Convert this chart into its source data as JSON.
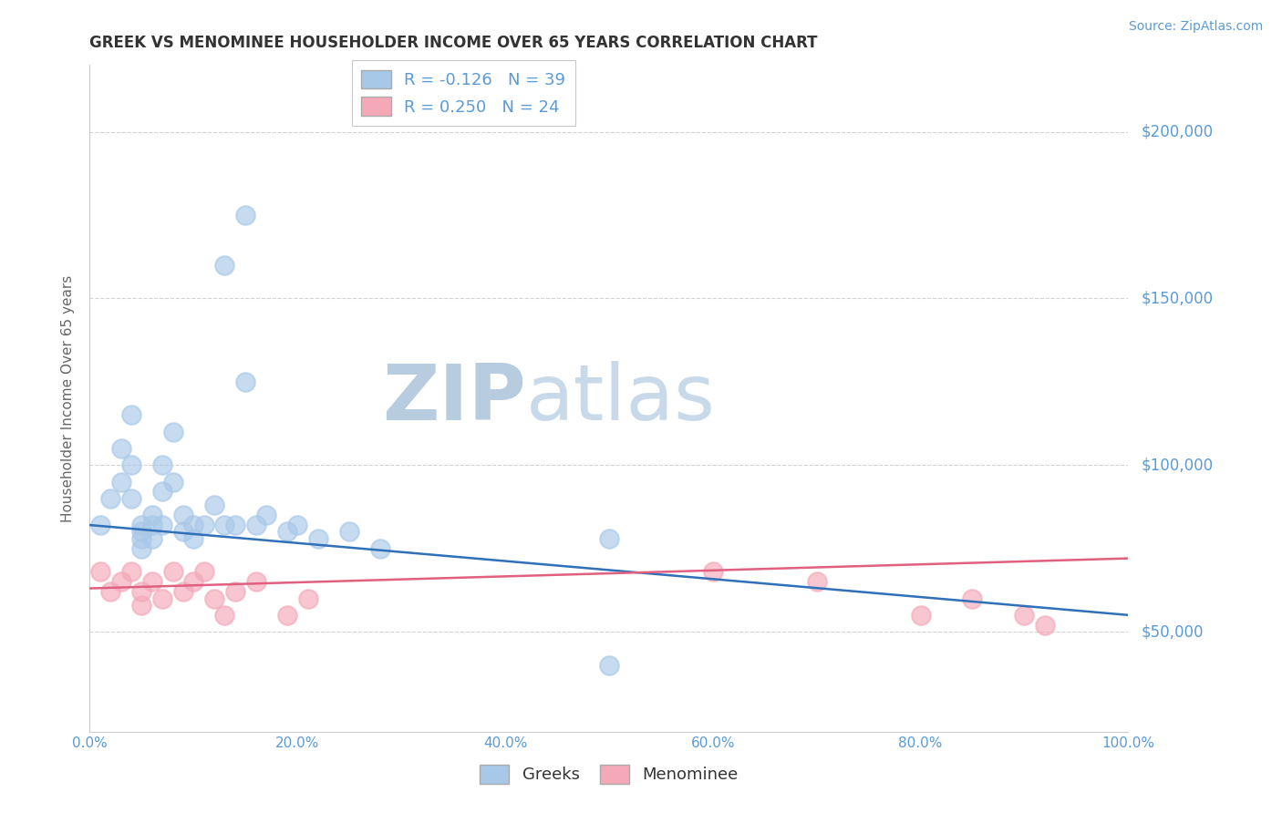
{
  "title": "GREEK VS MENOMINEE HOUSEHOLDER INCOME OVER 65 YEARS CORRELATION CHART",
  "source": "Source: ZipAtlas.com",
  "ylabel": "Householder Income Over 65 years",
  "xlim": [
    0,
    1
  ],
  "ylim": [
    20000,
    220000
  ],
  "yticks": [
    50000,
    100000,
    150000,
    200000
  ],
  "ytick_labels": [
    "$50,000",
    "$100,000",
    "$150,000",
    "$200,000"
  ],
  "xticks": [
    0.0,
    0.2,
    0.4,
    0.6,
    0.8,
    1.0
  ],
  "xtick_labels": [
    "0.0%",
    "20.0%",
    "40.0%",
    "60.0%",
    "80.0%",
    "100.0%"
  ],
  "greek_R": -0.126,
  "greek_N": 39,
  "menominee_R": 0.25,
  "menominee_N": 24,
  "blue_color": "#a8c8e8",
  "pink_color": "#f4a8b8",
  "blue_line_color": "#3070b8",
  "pink_line_color": "#e06080",
  "axis_color": "#5b9bd5",
  "grid_color": "#c8c8c8",
  "background_color": "#ffffff",
  "greek_x": [
    0.01,
    0.02,
    0.03,
    0.03,
    0.04,
    0.04,
    0.04,
    0.05,
    0.05,
    0.05,
    0.05,
    0.06,
    0.06,
    0.06,
    0.07,
    0.07,
    0.07,
    0.08,
    0.08,
    0.09,
    0.09,
    0.1,
    0.1,
    0.11,
    0.12,
    0.13,
    0.14,
    0.15,
    0.16,
    0.17,
    0.19,
    0.2,
    0.22,
    0.25,
    0.28,
    0.5,
    0.13,
    0.15,
    0.5
  ],
  "greek_y": [
    82000,
    90000,
    105000,
    95000,
    115000,
    100000,
    90000,
    82000,
    80000,
    78000,
    75000,
    85000,
    82000,
    78000,
    100000,
    92000,
    82000,
    110000,
    95000,
    85000,
    80000,
    82000,
    78000,
    82000,
    88000,
    82000,
    82000,
    125000,
    82000,
    85000,
    80000,
    82000,
    78000,
    80000,
    75000,
    78000,
    160000,
    175000,
    40000
  ],
  "menominee_x": [
    0.01,
    0.02,
    0.03,
    0.04,
    0.05,
    0.05,
    0.06,
    0.07,
    0.08,
    0.09,
    0.1,
    0.11,
    0.12,
    0.13,
    0.14,
    0.16,
    0.19,
    0.21,
    0.6,
    0.7,
    0.8,
    0.85,
    0.9,
    0.92
  ],
  "menominee_y": [
    68000,
    62000,
    65000,
    68000,
    58000,
    62000,
    65000,
    60000,
    68000,
    62000,
    65000,
    68000,
    60000,
    55000,
    62000,
    65000,
    55000,
    60000,
    68000,
    65000,
    55000,
    60000,
    55000,
    52000
  ]
}
